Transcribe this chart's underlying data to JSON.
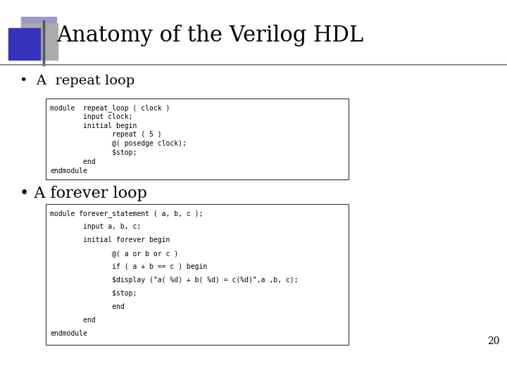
{
  "title": "Anatomy of the Verilog HDL",
  "title_fontsize": 22,
  "title_color": "#000000",
  "bg_color": "#ffffff",
  "bullet1": "•  A  repeat loop",
  "bullet2": "• A forever loop",
  "bullet1_fontsize": 14,
  "bullet2_fontsize": 16,
  "code1_lines": [
    "module  repeat_loop ( clock )",
    "        input clock;",
    "        initial begin",
    "               repeat ( 5 )",
    "               @( posedge clock);",
    "               $stop;",
    "        end",
    "endmodule"
  ],
  "code2_lines": [
    "module forever_statement ( a, b, c );",
    "        input a, b, c;",
    "        initial forever begin",
    "               @( a or b or c )",
    "               if ( a + b == c ) begin",
    "               $display (\"a( %d) + b( %d) = c(%d)\",a ,b, c);",
    "               $stop;",
    "               end",
    "        end",
    "endmodule"
  ],
  "code_fontsize": 7.0,
  "page_number": "20",
  "separator_color": "#999999",
  "box_color": "#333333",
  "header_sq_gray_color": "#aaaaaa",
  "header_sq_blue_color": "#3333bb",
  "header_sq_lightblue_color": "#9999cc",
  "header_line_color": "#777777"
}
